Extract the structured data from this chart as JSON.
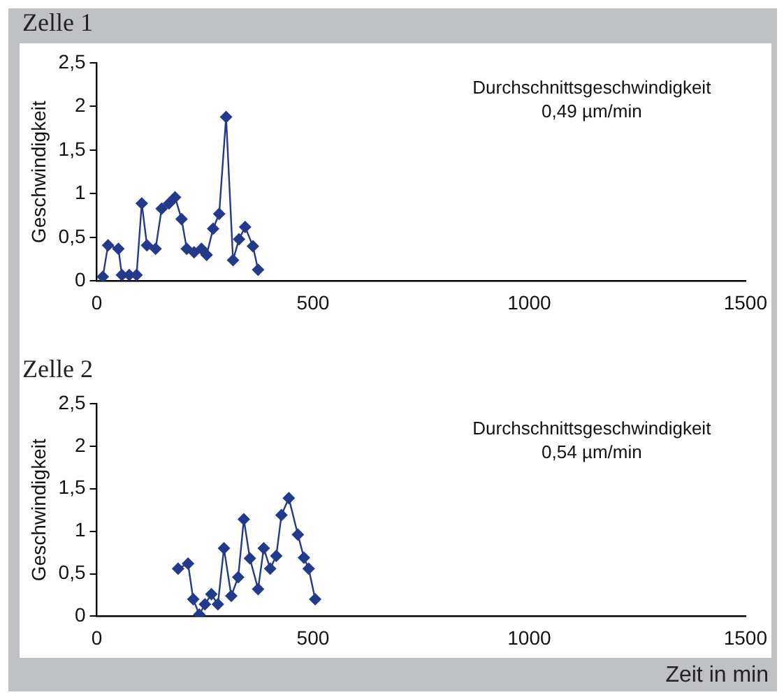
{
  "chart_data": [
    {
      "type": "line",
      "title": "Zelle 1",
      "ylabel": "Geschwindigkeit",
      "annotations": [
        "Durchschnittsgeschwindigkeit",
        "0,49 µm/min"
      ],
      "marker": "diamond",
      "line_style": "solid",
      "grid": false,
      "legend": false,
      "xlim": [
        0,
        1500
      ],
      "xticks": [
        0,
        500,
        1000,
        1500
      ],
      "ylim": [
        0,
        2.5
      ],
      "yticks": [
        0,
        {
          "value": 0.5,
          "label": "0,5"
        },
        1,
        {
          "value": 1.5,
          "label": "1,5"
        },
        2,
        {
          "value": 2.5,
          "label": "2,5"
        }
      ],
      "series": [
        {
          "color": "#233a8b",
          "x": [
            14,
            26,
            50,
            58,
            75,
            92,
            104,
            116,
            136,
            150,
            167,
            181,
            196,
            208,
            225,
            242,
            254,
            269,
            283,
            299,
            315,
            329,
            343,
            361,
            373
          ],
          "values": [
            0.05,
            0.41,
            0.37,
            0.07,
            0.07,
            0.07,
            0.89,
            0.41,
            0.37,
            0.83,
            0.89,
            0.96,
            0.71,
            0.37,
            0.33,
            0.37,
            0.3,
            0.6,
            0.77,
            1.88,
            0.24,
            0.48,
            0.62,
            0.4,
            0.13
          ]
        }
      ]
    },
    {
      "type": "line",
      "title": "Zelle 2",
      "xlabel": "Zeit in min",
      "ylabel": "Geschwindigkeit",
      "annotations": [
        "Durchschnittsgeschwindigkeit",
        "0,54 µm/min"
      ],
      "marker": "diamond",
      "line_style": "solid",
      "grid": false,
      "legend": false,
      "xlim": [
        0,
        1500
      ],
      "xticks": [
        0,
        500,
        1000,
        1500
      ],
      "ylim": [
        0,
        2.5
      ],
      "yticks": [
        0,
        {
          "value": 0.5,
          "label": "0,5"
        },
        1,
        {
          "value": 1.5,
          "label": "1,5"
        },
        2,
        {
          "value": 2.5,
          "label": "2,5"
        }
      ],
      "series": [
        {
          "color": "#233a8b",
          "x": [
            188,
            211,
            223,
            237,
            250,
            265,
            280,
            294,
            311,
            327,
            340,
            354,
            373,
            386,
            401,
            415,
            427,
            444,
            465,
            479,
            490,
            505
          ],
          "values": [
            0.56,
            0.62,
            0.2,
            0.02,
            0.14,
            0.26,
            0.14,
            0.8,
            0.24,
            0.46,
            1.14,
            0.68,
            0.32,
            0.8,
            0.56,
            0.71,
            1.19,
            1.39,
            0.96,
            0.69,
            0.56,
            0.2
          ]
        }
      ]
    }
  ]
}
